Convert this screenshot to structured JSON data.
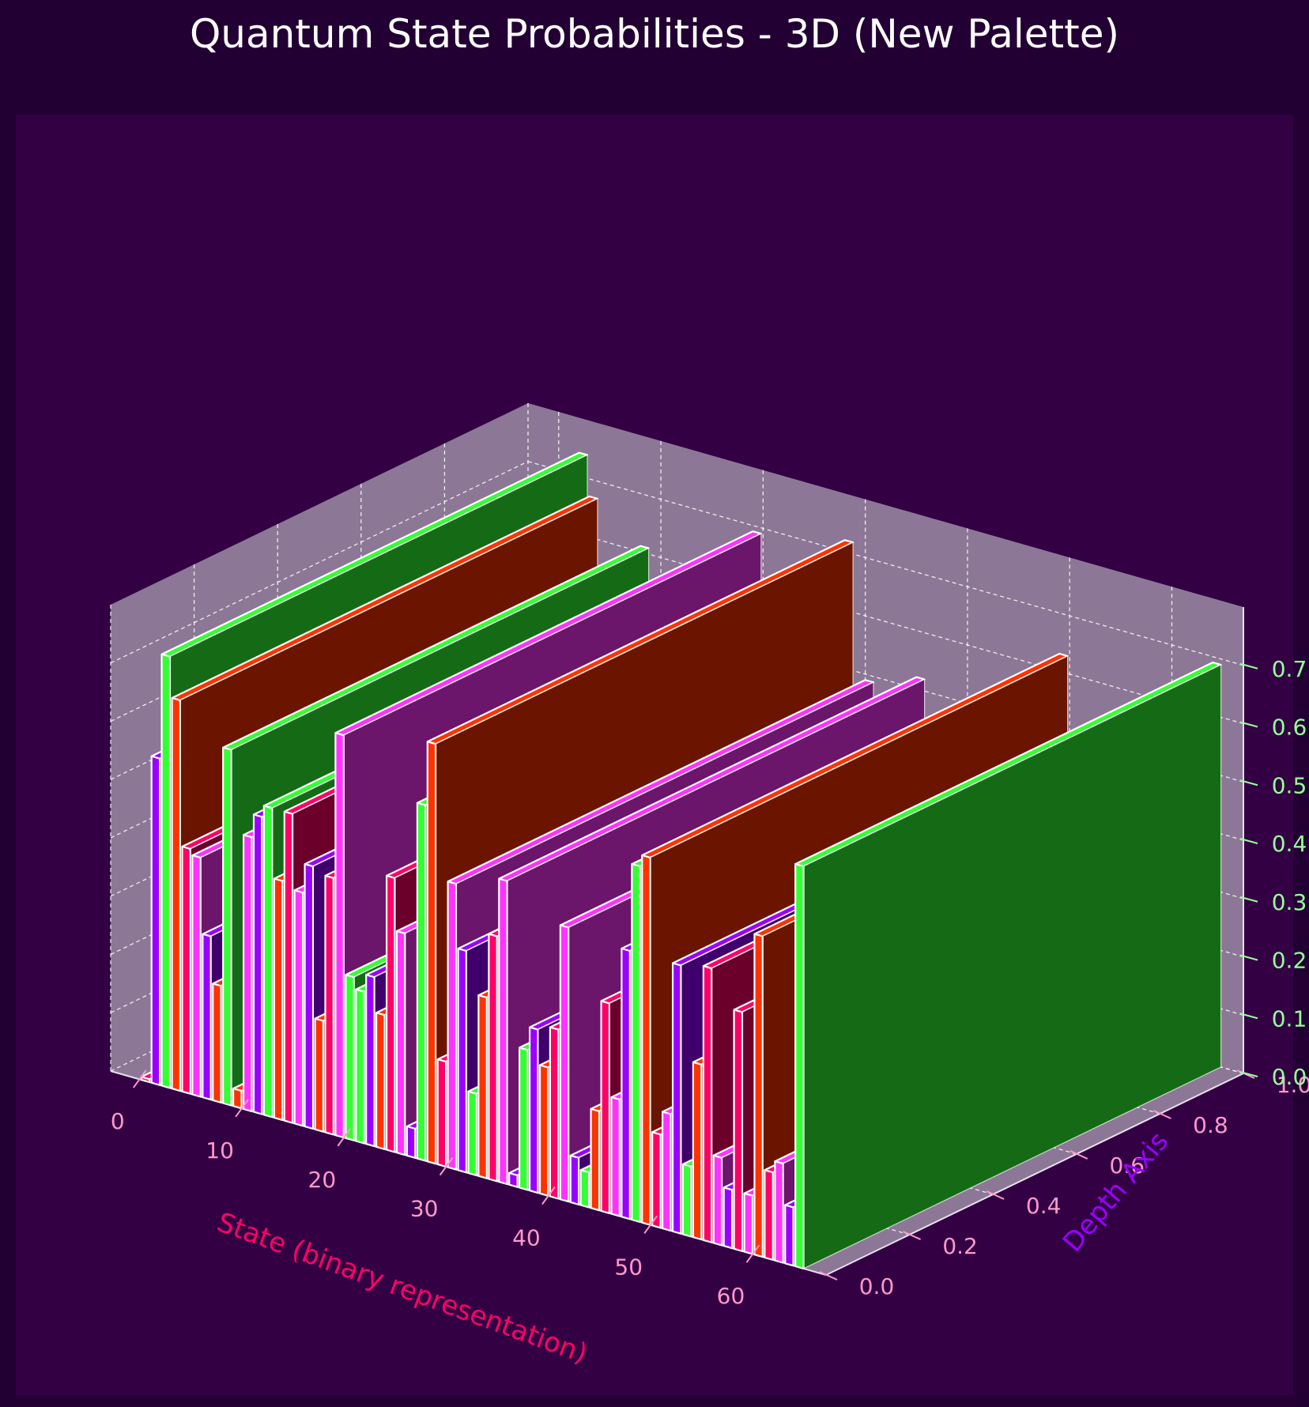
{
  "chart_data": {
    "type": "bar3d",
    "title": "Quantum State Probabilities - 3D (New Palette)",
    "xlabel": "State (binary representation)",
    "ylabel": "Depth Axis",
    "zlabel": "",
    "xlim": [
      -3,
      67
    ],
    "ylim": [
      0,
      1
    ],
    "zlim": [
      0,
      0.8
    ],
    "x_ticks": [
      "0",
      "10",
      "20",
      "30",
      "40",
      "50",
      "60"
    ],
    "y_ticks": [
      "0.0",
      "0.2",
      "0.4",
      "0.6",
      "0.8",
      "1.0"
    ],
    "z_ticks": [
      "0.0",
      "0.1",
      "0.2",
      "0.3",
      "0.4",
      "0.5",
      "0.6",
      "0.7"
    ],
    "grid": true,
    "bar_depth_range": [
      0,
      1
    ],
    "palette": [
      "#9900ff",
      "#33ff33",
      "#ff3300",
      "#ff0066",
      "#ff33ff"
    ],
    "colors": {
      "figure_background": "#220033",
      "plot_background": "#330044",
      "pane": "#8c7896",
      "title": "#ffffff",
      "xlabel": "#ff0066",
      "ylabel": "#9900ff",
      "x_tick": "#ff99cc",
      "y_tick": "#ff99cc",
      "z_tick": "#99ff99",
      "edge": "#ffffff"
    },
    "bars": [
      {
        "state": 0,
        "p": 0.005,
        "color": "#ff0066"
      },
      {
        "state": 1,
        "p": 0.56,
        "color": "#9900ff"
      },
      {
        "state": 2,
        "p": 0.74,
        "color": "#33ff33"
      },
      {
        "state": 3,
        "p": 0.67,
        "color": "#ff3300"
      },
      {
        "state": 4,
        "p": 0.42,
        "color": "#ff0066"
      },
      {
        "state": 5,
        "p": 0.41,
        "color": "#ff33ff"
      },
      {
        "state": 6,
        "p": 0.28,
        "color": "#9900ff"
      },
      {
        "state": 7,
        "p": 0.2,
        "color": "#ff3300"
      },
      {
        "state": 8,
        "p": 0.61,
        "color": "#33ff33"
      },
      {
        "state": 9,
        "p": 0.03,
        "color": "#ff3300"
      },
      {
        "state": 10,
        "p": 0.47,
        "color": "#ff33ff"
      },
      {
        "state": 11,
        "p": 0.51,
        "color": "#9900ff"
      },
      {
        "state": 12,
        "p": 0.53,
        "color": "#33ff33"
      },
      {
        "state": 13,
        "p": 0.41,
        "color": "#ff3300"
      },
      {
        "state": 14,
        "p": 0.53,
        "color": "#ff0066"
      },
      {
        "state": 15,
        "p": 0.4,
        "color": "#ff33ff"
      },
      {
        "state": 16,
        "p": 0.45,
        "color": "#9900ff"
      },
      {
        "state": 17,
        "p": 0.19,
        "color": "#ff3300"
      },
      {
        "state": 18,
        "p": 0.44,
        "color": "#ff0066"
      },
      {
        "state": 19,
        "p": 0.69,
        "color": "#ff33ff"
      },
      {
        "state": 20,
        "p": 0.28,
        "color": "#33ff33"
      },
      {
        "state": 21,
        "p": 0.26,
        "color": "#33ff33"
      },
      {
        "state": 22,
        "p": 0.29,
        "color": "#9900ff"
      },
      {
        "state": 23,
        "p": 0.23,
        "color": "#ff3300"
      },
      {
        "state": 24,
        "p": 0.47,
        "color": "#ff0066"
      },
      {
        "state": 25,
        "p": 0.38,
        "color": "#ff33ff"
      },
      {
        "state": 26,
        "p": 0.05,
        "color": "#9900ff"
      },
      {
        "state": 27,
        "p": 0.61,
        "color": "#33ff33"
      },
      {
        "state": 28,
        "p": 0.72,
        "color": "#ff3300"
      },
      {
        "state": 29,
        "p": 0.18,
        "color": "#ff0066"
      },
      {
        "state": 30,
        "p": 0.49,
        "color": "#ff33ff"
      },
      {
        "state": 31,
        "p": 0.38,
        "color": "#9900ff"
      },
      {
        "state": 32,
        "p": 0.14,
        "color": "#33ff33"
      },
      {
        "state": 33,
        "p": 0.31,
        "color": "#ff3300"
      },
      {
        "state": 34,
        "p": 0.42,
        "color": "#ff0066"
      },
      {
        "state": 35,
        "p": 0.52,
        "color": "#ff33ff"
      },
      {
        "state": 36,
        "p": 0.02,
        "color": "#9900ff"
      },
      {
        "state": 37,
        "p": 0.24,
        "color": "#33ff33"
      },
      {
        "state": 38,
        "p": 0.28,
        "color": "#9900ff"
      },
      {
        "state": 39,
        "p": 0.22,
        "color": "#ff3300"
      },
      {
        "state": 40,
        "p": 0.29,
        "color": "#ff0066"
      },
      {
        "state": 41,
        "p": 0.47,
        "color": "#ff33ff"
      },
      {
        "state": 42,
        "p": 0.08,
        "color": "#9900ff"
      },
      {
        "state": 43,
        "p": 0.06,
        "color": "#33ff33"
      },
      {
        "state": 44,
        "p": 0.17,
        "color": "#ff3300"
      },
      {
        "state": 45,
        "p": 0.36,
        "color": "#ff0066"
      },
      {
        "state": 46,
        "p": 0.2,
        "color": "#ff33ff"
      },
      {
        "state": 47,
        "p": 0.46,
        "color": "#9900ff"
      },
      {
        "state": 48,
        "p": 0.61,
        "color": "#33ff33"
      },
      {
        "state": 49,
        "p": 0.63,
        "color": "#ff3300"
      },
      {
        "state": 50,
        "p": 0.16,
        "color": "#ff0066"
      },
      {
        "state": 51,
        "p": 0.2,
        "color": "#ff33ff"
      },
      {
        "state": 52,
        "p": 0.46,
        "color": "#9900ff"
      },
      {
        "state": 53,
        "p": 0.12,
        "color": "#33ff33"
      },
      {
        "state": 54,
        "p": 0.3,
        "color": "#ff3300"
      },
      {
        "state": 55,
        "p": 0.47,
        "color": "#ff0066"
      },
      {
        "state": 56,
        "p": 0.15,
        "color": "#ff33ff"
      },
      {
        "state": 57,
        "p": 0.1,
        "color": "#9900ff"
      },
      {
        "state": 58,
        "p": 0.41,
        "color": "#ff0066"
      },
      {
        "state": 59,
        "p": 0.1,
        "color": "#ff33ff"
      },
      {
        "state": 60,
        "p": 0.55,
        "color": "#ff3300"
      },
      {
        "state": 61,
        "p": 0.15,
        "color": "#ff0066"
      },
      {
        "state": 62,
        "p": 0.17,
        "color": "#ff33ff"
      },
      {
        "state": 63,
        "p": 0.1,
        "color": "#9900ff"
      },
      {
        "state": 64,
        "p": 0.69,
        "color": "#33ff33"
      }
    ]
  }
}
